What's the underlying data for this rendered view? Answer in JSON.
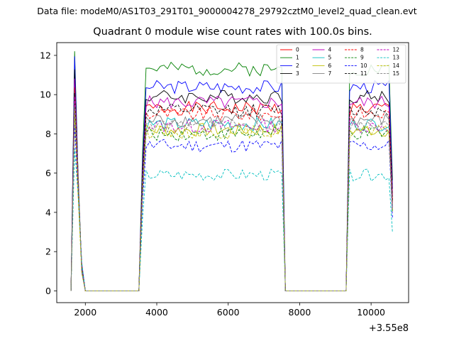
{
  "suptitle": "Data file: modeM0/AS1T03_291T01_9000004278_29792cztM0_level2_quad_clean.evt",
  "chart_data": {
    "type": "line",
    "title": "Quadrant 0 module wise count rates with 100.0s bins.",
    "xlabel": "",
    "ylabel": "",
    "x_offset_label": "+3.55e8",
    "xlim": [
      1200,
      11050
    ],
    "ylim": [
      -0.6,
      12.65
    ],
    "x_ticks": [
      2000,
      4000,
      6000,
      8000,
      10000
    ],
    "x_tick_labels": [
      "2000",
      "4000",
      "6000",
      "8000",
      "10000"
    ],
    "y_ticks": [
      0,
      2,
      4,
      6,
      8,
      10,
      12
    ],
    "y_tick_labels": [
      "0",
      "2",
      "4",
      "6",
      "8",
      "10",
      "12"
    ],
    "grid": false,
    "legend_position": "upper-right",
    "segments": [
      {
        "start": 1600,
        "n_high": 2,
        "n_zero": 17
      },
      {
        "start": 3500,
        "n_high": 40,
        "n_zero": 18
      },
      {
        "start": 9300,
        "n_high": 13,
        "n_zero": 0
      }
    ],
    "segment_note": "Points every 100 s: each segment begins with one ramp point (value 0), then high-level points, then zero-level points.",
    "series": [
      {
        "name": "0",
        "color": "#ff0000",
        "dash": "solid",
        "level": 9.3,
        "amp": 0.35,
        "seed": 1
      },
      {
        "name": "1",
        "color": "#008000",
        "dash": "solid",
        "level": 11.3,
        "amp": 0.35,
        "seed": 2
      },
      {
        "name": "2",
        "color": "#0000ff",
        "dash": "solid",
        "level": 10.4,
        "amp": 0.35,
        "seed": 3
      },
      {
        "name": "3",
        "color": "#000000",
        "dash": "solid",
        "level": 9.9,
        "amp": 0.35,
        "seed": 4
      },
      {
        "name": "4",
        "color": "#bf00bf",
        "dash": "solid",
        "level": 9.6,
        "amp": 0.35,
        "seed": 5
      },
      {
        "name": "5",
        "color": "#00bfbf",
        "dash": "solid",
        "level": 8.5,
        "amp": 0.35,
        "seed": 6
      },
      {
        "name": "6",
        "color": "#bfbf00",
        "dash": "solid",
        "level": 8.2,
        "amp": 0.35,
        "seed": 7
      },
      {
        "name": "7",
        "color": "#808080",
        "dash": "solid",
        "level": 8.7,
        "amp": 0.35,
        "seed": 8
      },
      {
        "name": "8",
        "color": "#ff0000",
        "dash": "dashed",
        "level": 9.0,
        "amp": 0.35,
        "seed": 9
      },
      {
        "name": "9",
        "color": "#008000",
        "dash": "dashed",
        "level": 8.0,
        "amp": 0.35,
        "seed": 10
      },
      {
        "name": "10",
        "color": "#0000ff",
        "dash": "dashed",
        "level": 7.4,
        "amp": 0.35,
        "seed": 11
      },
      {
        "name": "11",
        "color": "#000000",
        "dash": "dashed",
        "level": 9.2,
        "amp": 0.35,
        "seed": 12
      },
      {
        "name": "12",
        "color": "#bf00bf",
        "dash": "dashed",
        "level": 8.4,
        "amp": 0.35,
        "seed": 13
      },
      {
        "name": "13",
        "color": "#00bfbf",
        "dash": "dashed",
        "level": 5.9,
        "amp": 0.3,
        "seed": 14
      },
      {
        "name": "14",
        "color": "#bfbf00",
        "dash": "dashed",
        "level": 8.1,
        "amp": 0.35,
        "seed": 15
      },
      {
        "name": "15",
        "color": "#808080",
        "dash": "dashed",
        "level": 8.4,
        "amp": 0.35,
        "seed": 16
      }
    ]
  }
}
